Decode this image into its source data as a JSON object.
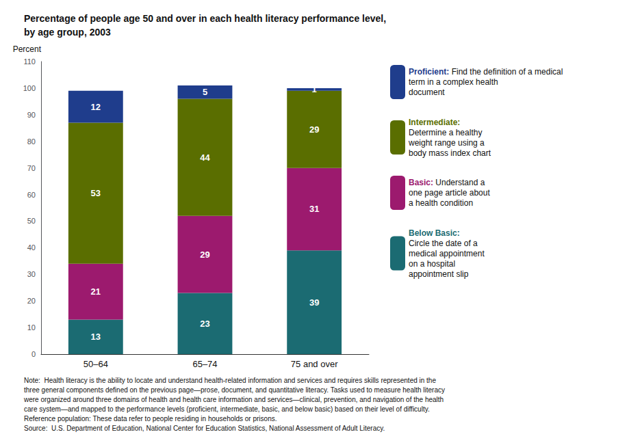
{
  "chart_data": {
    "type": "bar",
    "title": "Percentage of people age 50 and over in each health literacy performance level,\nby age group, 2003",
    "ylabel": "Percent",
    "categories": [
      "50–64",
      "65–74",
      "75 and over"
    ],
    "series": [
      {
        "name": "Below Basic:",
        "color": "#1b6b72",
        "values": [
          13,
          23,
          39
        ],
        "description": "\nCircle the date of a\nmedical appointment\non a hospital\nappointment slip"
      },
      {
        "name": "Basic:",
        "color": "#9c1a6e",
        "values": [
          21,
          29,
          31
        ],
        "description": " Understand a\none page article about\na health condition"
      },
      {
        "name": "Intermediate:",
        "color": "#5a6e00",
        "values": [
          53,
          44,
          29
        ],
        "description": "\nDetermine a healthy\nweight range using a\nbody mass index chart"
      },
      {
        "name": "Proficient:",
        "color": "#1f3d8c",
        "values": [
          12,
          5,
          1
        ],
        "description": " Find the definition of a medical\nterm in a complex health\ndocument"
      }
    ],
    "ylim": [
      0,
      110
    ],
    "yticks": [
      0,
      10,
      20,
      30,
      40,
      50,
      60,
      70,
      80,
      90,
      100,
      110
    ],
    "stacked": true,
    "data_labels": true,
    "grid": false,
    "legend": "right",
    "annotations": [
      "Note:  Health literacy is the ability to locate and understand health-related information and services and requires skills represented in the",
      "three general components defined on the previous page—prose, document, and quantitative literacy. Tasks used to measure health literacy",
      "were organized around three domains of health and health care information and services—clinical, prevention, and navigation of the health",
      "care system—and mapped to the performance levels (proficient, intermediate, basic, and below basic) based on their level of difficulty.",
      "Reference population: These data refer to people residing in households or prisons.",
      "Source:  U.S. Department of Education, National Center for Education Statistics, National Assessment of Adult Literacy."
    ]
  }
}
